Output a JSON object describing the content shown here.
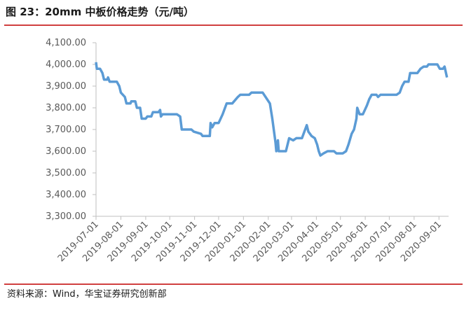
{
  "chart_data": {
    "type": "line",
    "title": "图 23：20mm 中板价格走势（元/吨）",
    "source": "资料来源：Wind，华宝证券研究创新部",
    "series": [
      {
        "color": "#5b9bd5",
        "x": [
          "2019-07-01",
          "2019-07-02",
          "2019-07-06",
          "2019-07-09",
          "2019-07-11",
          "2019-07-15",
          "2019-07-16",
          "2019-07-18",
          "2019-07-27",
          "2019-07-30",
          "2019-08-01",
          "2019-08-06",
          "2019-08-08",
          "2019-08-13",
          "2019-08-14",
          "2019-08-19",
          "2019-08-21",
          "2019-08-25",
          "2019-08-27",
          "2019-09-01",
          "2019-09-03",
          "2019-09-08",
          "2019-09-10",
          "2019-09-17",
          "2019-09-19",
          "2019-09-20",
          "2019-09-22",
          "2019-10-10",
          "2019-10-14",
          "2019-10-16",
          "2019-10-28",
          "2019-10-31",
          "2019-11-09",
          "2019-11-11",
          "2019-11-20",
          "2019-11-21",
          "2019-11-23",
          "2019-11-26",
          "2019-12-01",
          "2019-12-06",
          "2019-12-11",
          "2019-12-18",
          "2019-12-25",
          "2019-12-28",
          "2020-01-08",
          "2020-01-11",
          "2020-01-25",
          "2020-02-03",
          "2020-02-06",
          "2020-02-10",
          "2020-02-11",
          "2020-02-13",
          "2020-02-14",
          "2020-02-23",
          "2020-02-27",
          "2020-03-03",
          "2020-03-07",
          "2020-03-14",
          "2020-03-17",
          "2020-03-20",
          "2020-03-22",
          "2020-03-26",
          "2020-03-30",
          "2020-04-02",
          "2020-04-04",
          "2020-04-06",
          "2020-04-10",
          "2020-04-15",
          "2020-04-23",
          "2020-04-26",
          "2020-05-04",
          "2020-05-08",
          "2020-05-11",
          "2020-05-15",
          "2020-05-18",
          "2020-05-21",
          "2020-05-22",
          "2020-05-25",
          "2020-05-29",
          "2020-06-03",
          "2020-06-06",
          "2020-06-09",
          "2020-06-15",
          "2020-06-17",
          "2020-06-20",
          "2020-07-10",
          "2020-07-14",
          "2020-07-17",
          "2020-07-20",
          "2020-07-25",
          "2020-07-27",
          "2020-08-05",
          "2020-08-09",
          "2020-08-13",
          "2020-08-17",
          "2020-08-19",
          "2020-08-30",
          "2020-09-02",
          "2020-09-06",
          "2020-09-08",
          "2020-09-11"
        ],
        "values": [
          4010,
          3980,
          3980,
          3960,
          3930,
          3930,
          3940,
          3920,
          3920,
          3900,
          3870,
          3850,
          3820,
          3820,
          3830,
          3830,
          3800,
          3800,
          3750,
          3750,
          3760,
          3760,
          3780,
          3780,
          3790,
          3760,
          3770,
          3770,
          3760,
          3700,
          3700,
          3690,
          3680,
          3670,
          3670,
          3730,
          3710,
          3730,
          3730,
          3770,
          3820,
          3820,
          3850,
          3860,
          3860,
          3870,
          3870,
          3820,
          3750,
          3640,
          3600,
          3650,
          3600,
          3600,
          3660,
          3650,
          3660,
          3660,
          3690,
          3720,
          3690,
          3670,
          3660,
          3630,
          3600,
          3580,
          3590,
          3600,
          3600,
          3590,
          3590,
          3600,
          3630,
          3680,
          3700,
          3750,
          3800,
          3770,
          3770,
          3810,
          3840,
          3860,
          3860,
          3850,
          3860,
          3860,
          3870,
          3900,
          3920,
          3920,
          3960,
          3960,
          3980,
          3990,
          3990,
          4000,
          4000,
          3980,
          3980,
          3990,
          3940
        ]
      }
    ],
    "xlim": [
      "2019-07-01",
      "2020-09-13"
    ],
    "xticks": [
      "2019-07-01",
      "2019-08-01",
      "2019-09-01",
      "2019-10-01",
      "2019-11-01",
      "2019-12-01",
      "2020-01-01",
      "2020-02-01",
      "2020-03-01",
      "2020-04-01",
      "2020-05-01",
      "2020-06-01",
      "2020-07-01",
      "2020-08-01",
      "2020-09-01"
    ],
    "ylim": [
      3300,
      4100
    ],
    "yticks": [
      {
        "value": 3300,
        "label": "3,300.00"
      },
      {
        "value": 3400,
        "label": "3,400.00"
      },
      {
        "value": 3500,
        "label": "3,500.00"
      },
      {
        "value": 3600,
        "label": "3,600.00"
      },
      {
        "value": 3700,
        "label": "3,700.00"
      },
      {
        "value": 3800,
        "label": "3,800.00"
      },
      {
        "value": 3900,
        "label": "3,900.00"
      },
      {
        "value": 4000,
        "label": "4,000.00"
      },
      {
        "value": 4100,
        "label": "4,100.00"
      }
    ]
  }
}
